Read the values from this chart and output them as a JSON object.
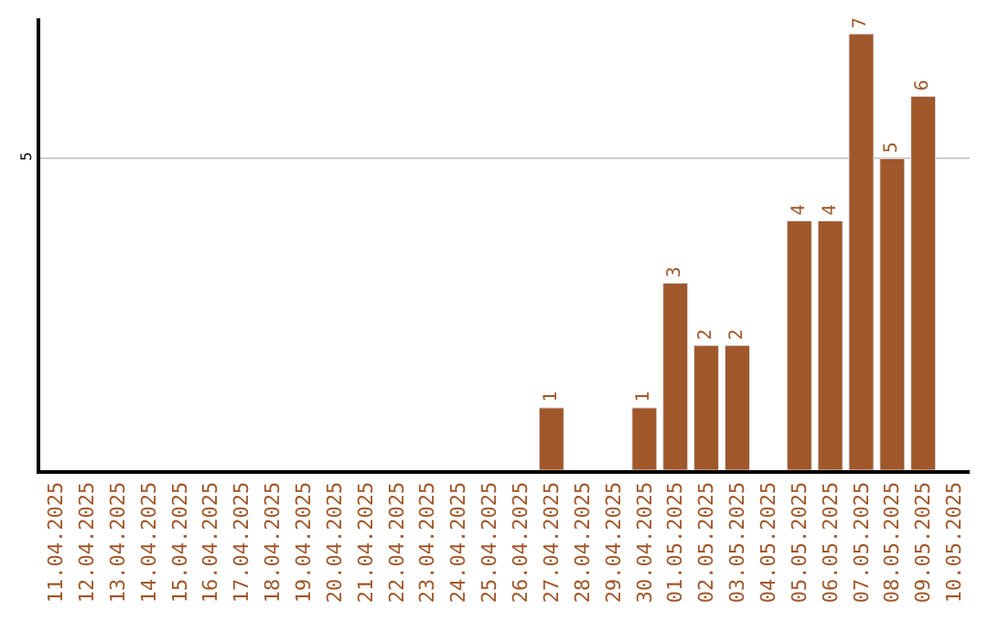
{
  "chart_data": {
    "type": "bar",
    "categories": [
      "11.04.2025",
      "12.04.2025",
      "13.04.2025",
      "14.04.2025",
      "15.04.2025",
      "16.04.2025",
      "17.04.2025",
      "18.04.2025",
      "19.04.2025",
      "20.04.2025",
      "21.04.2025",
      "22.04.2025",
      "23.04.2025",
      "24.04.2025",
      "25.04.2025",
      "26.04.2025",
      "27.04.2025",
      "28.04.2025",
      "29.04.2025",
      "30.04.2025",
      "01.05.2025",
      "02.05.2025",
      "03.05.2025",
      "04.05.2025",
      "05.05.2025",
      "06.05.2025",
      "07.05.2025",
      "08.05.2025",
      "09.05.2025",
      "10.05.2025"
    ],
    "values": [
      null,
      null,
      null,
      null,
      null,
      null,
      null,
      null,
      null,
      null,
      null,
      null,
      null,
      null,
      null,
      null,
      1,
      null,
      null,
      1,
      3,
      2,
      2,
      null,
      4,
      4,
      7,
      5,
      6,
      null
    ],
    "color": "#a0572a",
    "ylim": [
      0,
      7.25
    ],
    "yticks": [
      5
    ],
    "grid": "y",
    "data_labels": true
  }
}
